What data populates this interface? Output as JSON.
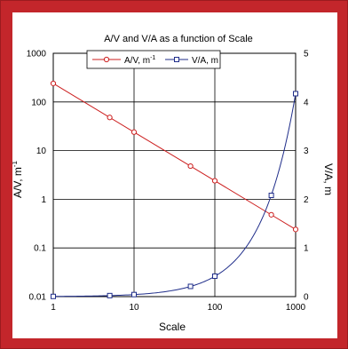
{
  "chart_data": {
    "type": "line",
    "title": "A/V and V/A as a function of Scale",
    "xlabel": "Scale",
    "ylabel": "A/V, m",
    "ylabel_sup": "-1",
    "y2label": "V/A, m",
    "x_scale": "log",
    "xlim": [
      1,
      1000
    ],
    "x_ticks": [
      "1",
      "10",
      "100",
      "1000"
    ],
    "y_scale": "log",
    "ylim": [
      0.01,
      1000
    ],
    "y_ticks": [
      "0.01",
      "0.1",
      "1",
      "10",
      "100",
      "1000"
    ],
    "y2_scale": "linear",
    "y2lim": [
      0,
      5
    ],
    "y2_ticks": [
      "0",
      "1",
      "2",
      "3",
      "4",
      "5"
    ],
    "grid": true,
    "legend_position": "top-left",
    "series": [
      {
        "name": "A/V, m",
        "name_sup": "-1",
        "axis": "left",
        "color": "#cc1f1f",
        "marker": "circle",
        "x": [
          1,
          5,
          10,
          50,
          100,
          500,
          1000
        ],
        "y": [
          240,
          48,
          24,
          4.8,
          2.4,
          0.48,
          0.24
        ]
      },
      {
        "name": "V/A, m",
        "axis": "right",
        "color": "#1f2d8a",
        "marker": "square",
        "x": [
          1,
          5,
          10,
          50,
          100,
          500,
          1000
        ],
        "y": [
          0.004,
          0.021,
          0.042,
          0.21,
          0.42,
          2.08,
          4.17
        ]
      }
    ]
  },
  "colors": {
    "frame": "#c3262b",
    "grid": "#000000"
  }
}
